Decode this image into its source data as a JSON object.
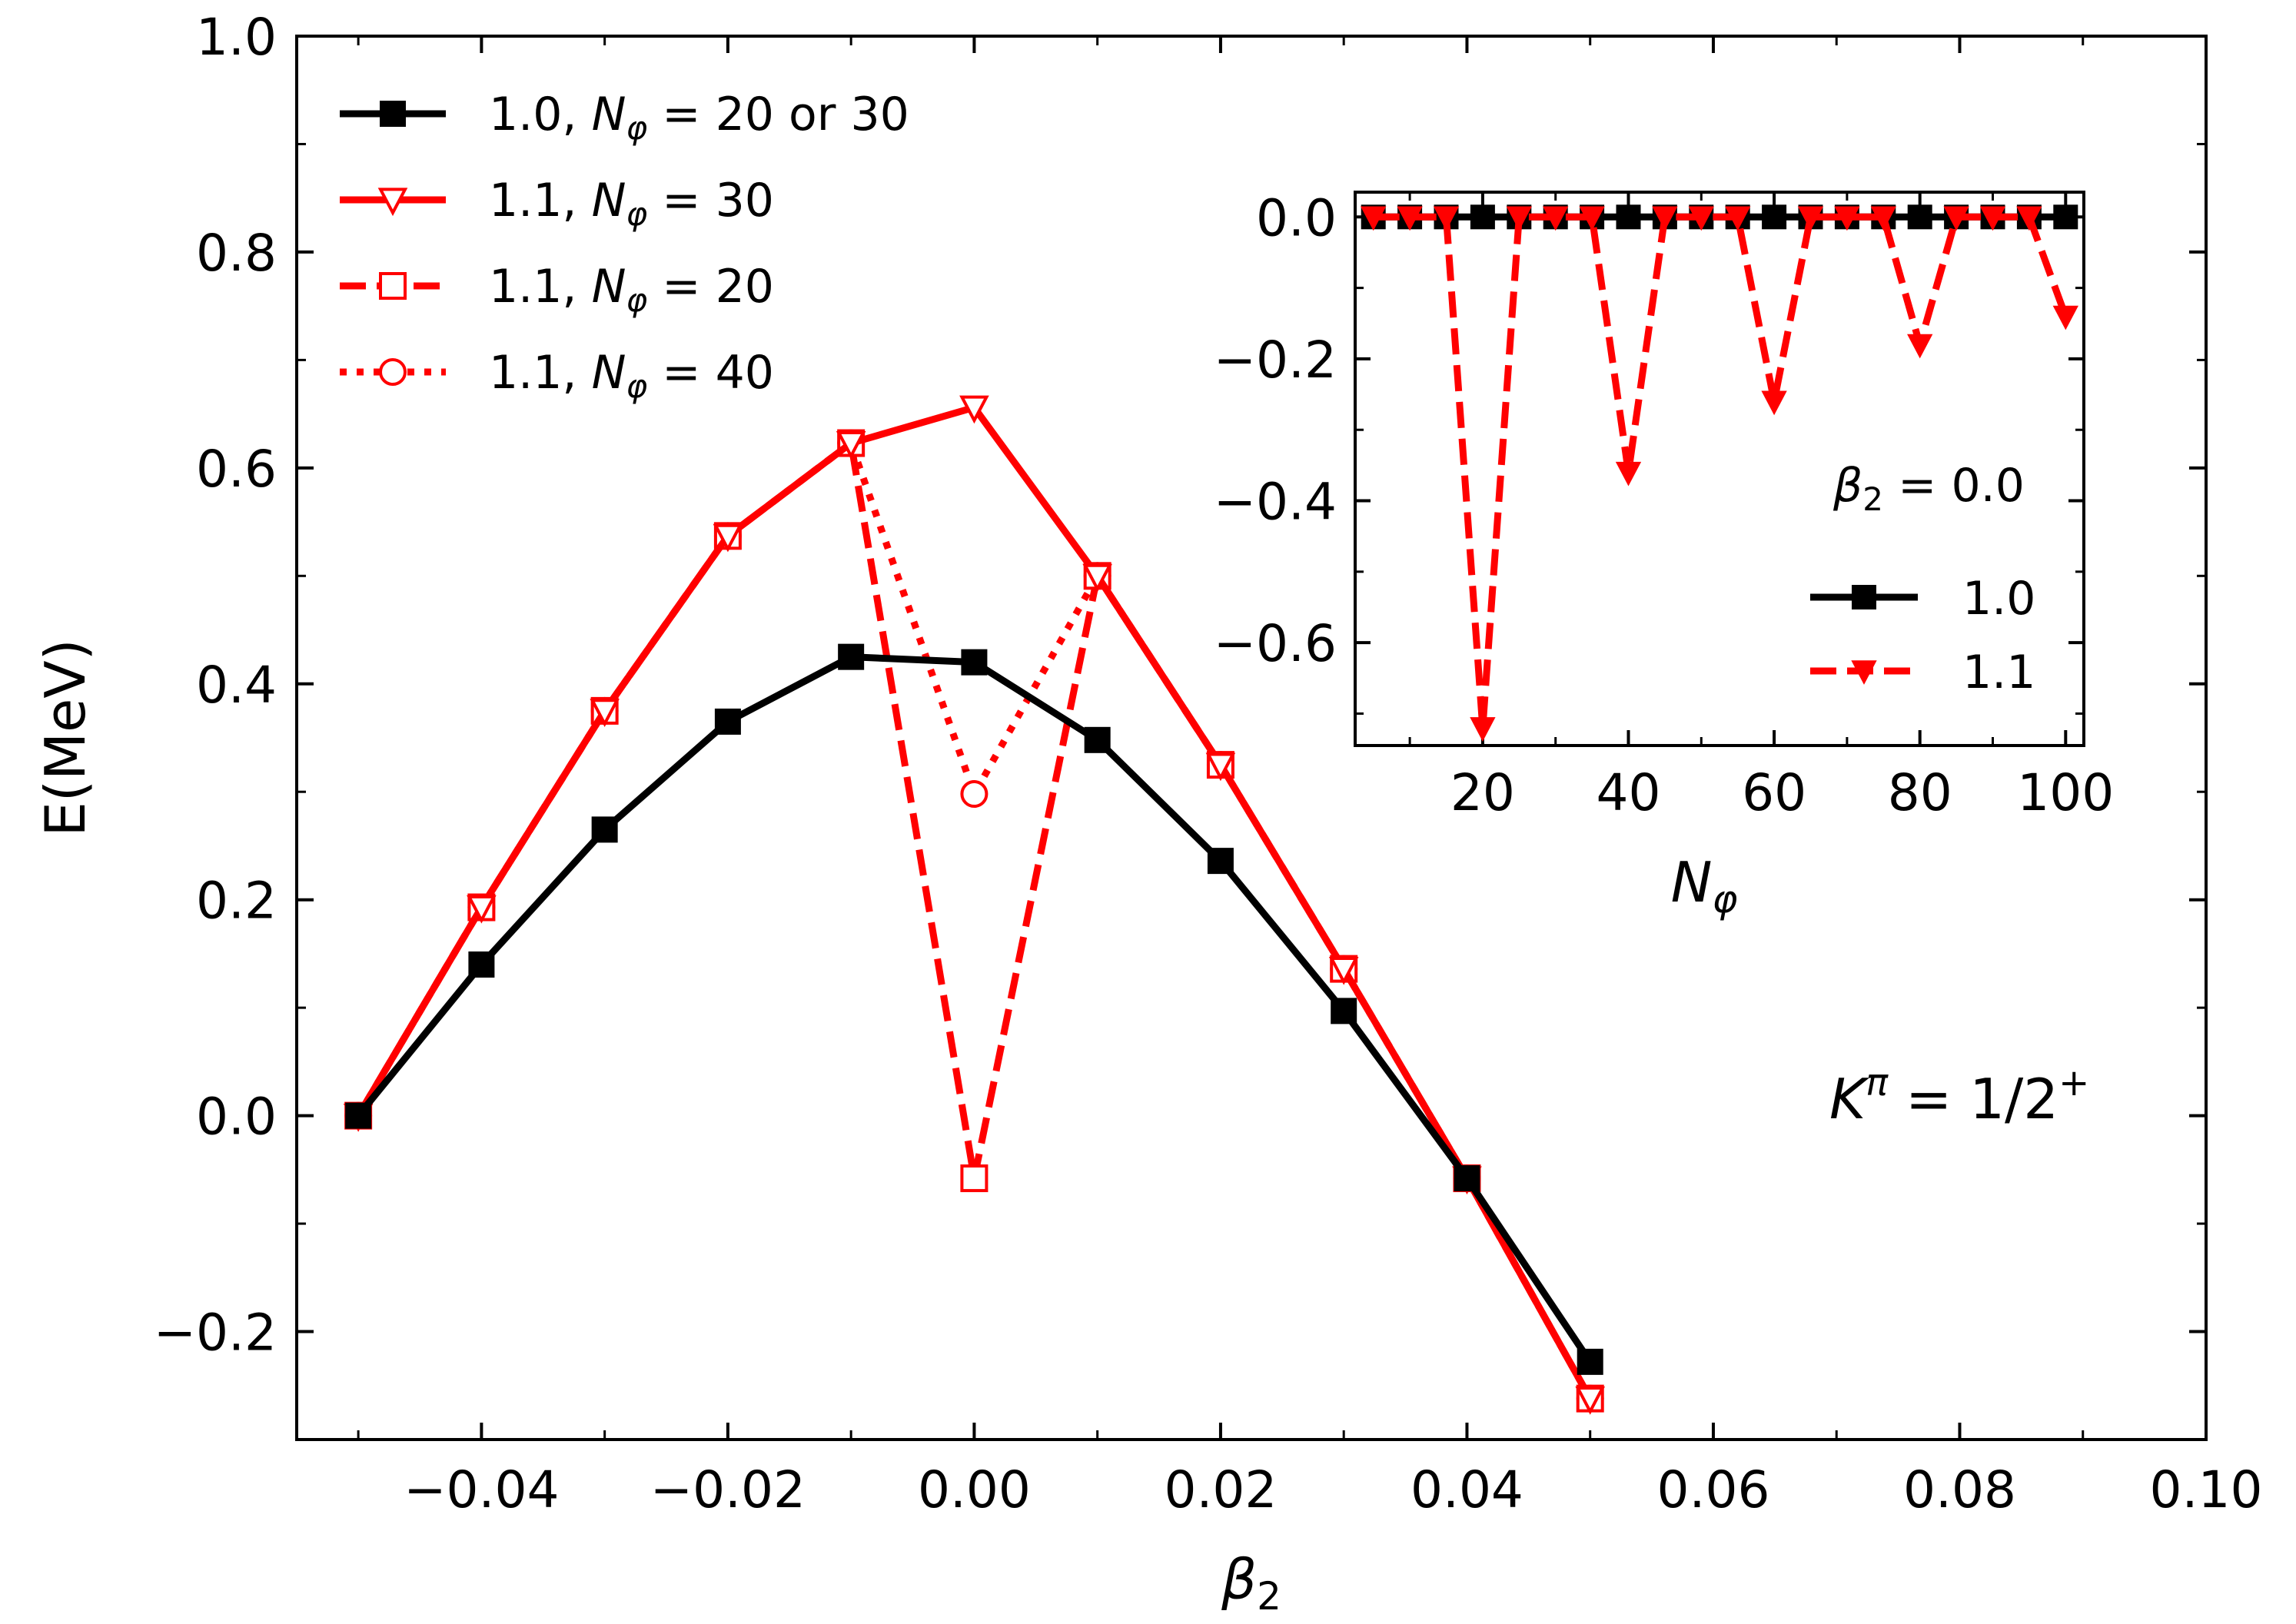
{
  "chart_data": [
    {
      "type": "line",
      "name": "main",
      "xlabel": "β",
      "xlabel_sub": "2",
      "ylabel": "E(MeV)",
      "xlim": [
        -0.055,
        0.1
      ],
      "ylim": [
        -0.3,
        1.0
      ],
      "grid": false,
      "legend": "top-left",
      "xticks": [
        -0.04,
        -0.02,
        0.0,
        0.02,
        0.04,
        0.06,
        0.08,
        0.1
      ],
      "xtick_labels": [
        "−0.04",
        "−0.02",
        "0.00",
        "0.02",
        "0.04",
        "0.06",
        "0.08",
        "0.10"
      ],
      "yticks": [
        -0.2,
        0.0,
        0.2,
        0.4,
        0.6,
        0.8,
        1.0
      ],
      "ytick_labels": [
        "−0.2",
        "0.0",
        "0.2",
        "0.4",
        "0.6",
        "0.8",
        "1.0"
      ],
      "annotation": {
        "main": "K",
        "sup": "π",
        "rest": " = 1/2",
        "sup2": "+"
      },
      "series": [
        {
          "name": "1.0, Nφ = 20 or 30",
          "legend_prefix": "1.0, ",
          "legend_var": "N",
          "legend_sub": "φ",
          "legend_rest": " = 20 or 30",
          "color": "#000000",
          "linestyle": "solid",
          "marker": "square-filled",
          "x": [
            -0.05,
            -0.04,
            -0.03,
            -0.02,
            -0.01,
            0.0,
            0.01,
            0.02,
            0.03,
            0.04,
            0.05
          ],
          "y": [
            0.0,
            0.14,
            0.265,
            0.365,
            0.425,
            0.42,
            0.348,
            0.236,
            0.097,
            -0.058,
            -0.228
          ]
        },
        {
          "name": "1.1, Nφ = 30",
          "legend_prefix": "1.1, ",
          "legend_var": "N",
          "legend_sub": "φ",
          "legend_rest": " = 30",
          "color": "#ff0000",
          "linestyle": "solid",
          "marker": "triangle-down-open",
          "x": [
            -0.05,
            -0.04,
            -0.03,
            -0.02,
            -0.01,
            0.0,
            0.01,
            0.02,
            0.03,
            0.04,
            0.05
          ],
          "y": [
            0.0,
            0.193,
            0.375,
            0.537,
            0.623,
            0.656,
            0.5,
            0.325,
            0.136,
            -0.058,
            -0.262
          ]
        },
        {
          "name": "1.1, Nφ = 20",
          "legend_prefix": "1.1, ",
          "legend_var": "N",
          "legend_sub": "φ",
          "legend_rest": " = 20",
          "color": "#ff0000",
          "linestyle": "dashed",
          "marker": "square-open",
          "x": [
            -0.05,
            -0.04,
            -0.03,
            -0.02,
            -0.01,
            0.0,
            0.01,
            0.02,
            0.03,
            0.04,
            0.05
          ],
          "y": [
            0.0,
            0.193,
            0.375,
            0.537,
            0.623,
            -0.058,
            0.5,
            0.325,
            0.136,
            -0.058,
            -0.262
          ]
        },
        {
          "name": "1.1, Nφ = 40",
          "legend_prefix": "1.1, ",
          "legend_var": "N",
          "legend_sub": "φ",
          "legend_rest": " = 40",
          "color": "#ff0000",
          "linestyle": "dotted",
          "marker": "circle-open",
          "x": [
            -0.05,
            -0.04,
            -0.03,
            -0.02,
            -0.01,
            0.0,
            0.01,
            0.02,
            0.03,
            0.04,
            0.05
          ],
          "y": [
            0.0,
            0.193,
            0.375,
            0.537,
            0.623,
            0.298,
            0.5,
            0.325,
            0.136,
            -0.058,
            -0.262
          ]
        }
      ]
    },
    {
      "type": "line",
      "name": "inset",
      "xlabel": "N",
      "xlabel_sub": "φ",
      "ylabel": "",
      "xlim": [
        2.5,
        102.5
      ],
      "ylim": [
        -0.745,
        0.035
      ],
      "legend": "lower-right",
      "legend_title_var": "β",
      "legend_title_sub": "2",
      "legend_title_rest": " = 0.0",
      "xticks": [
        20,
        40,
        60,
        80,
        100
      ],
      "xtick_labels": [
        "20",
        "40",
        "60",
        "80",
        "100"
      ],
      "yticks": [
        0.0,
        -0.2,
        -0.4,
        -0.6
      ],
      "ytick_labels": [
        "0.0",
        "−0.2",
        "−0.4",
        "−0.6"
      ],
      "series": [
        {
          "name": "1.0",
          "color": "#000000",
          "linestyle": "solid",
          "marker": "square-filled",
          "x": [
            5,
            10,
            15,
            20,
            25,
            30,
            35,
            40,
            45,
            50,
            55,
            60,
            65,
            70,
            75,
            80,
            85,
            90,
            95,
            100
          ],
          "y": [
            0,
            0,
            0,
            0,
            0,
            0,
            0,
            0,
            0,
            0,
            0,
            0,
            0,
            0,
            0,
            0,
            0,
            0,
            0,
            0
          ]
        },
        {
          "name": "1.1",
          "color": "#ff0000",
          "linestyle": "dashed",
          "marker": "triangle-down-filled",
          "x": [
            5,
            10,
            15,
            20,
            25,
            30,
            35,
            40,
            45,
            50,
            55,
            60,
            65,
            70,
            75,
            80,
            85,
            90,
            95,
            100
          ],
          "y": [
            0,
            0,
            0,
            -0.72,
            0,
            0,
            0,
            -0.36,
            0,
            0,
            0,
            -0.26,
            0,
            0,
            0,
            -0.18,
            0,
            0,
            0,
            -0.14
          ]
        }
      ]
    }
  ]
}
